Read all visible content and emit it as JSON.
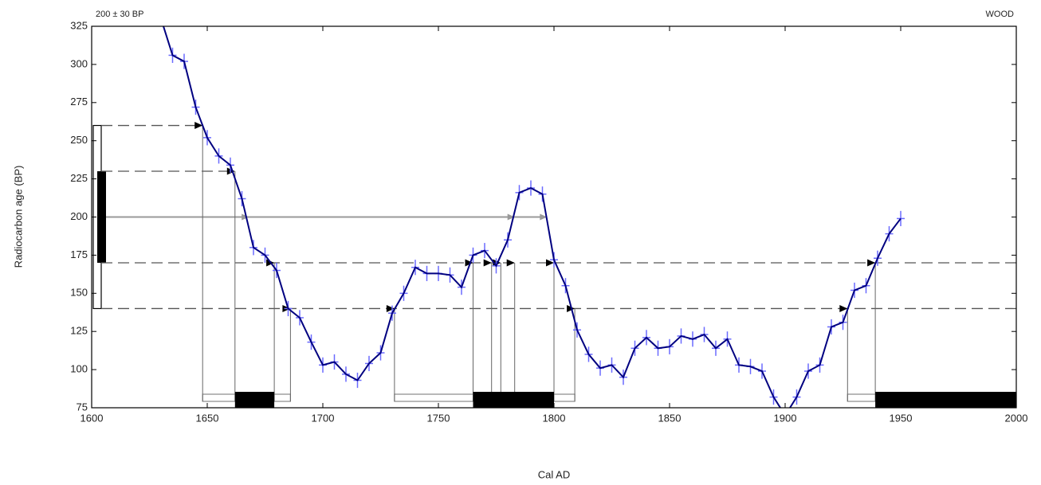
{
  "chart_data": {
    "type": "calibration",
    "sample_label": "200 ± 30 BP",
    "material_label": "WOOD",
    "xlabel": "Cal AD",
    "ylabel": "Radiocarbon age (BP)",
    "xlim": [
      1600,
      2000
    ],
    "xticks": [
      1600,
      1650,
      1700,
      1750,
      1800,
      1850,
      1900,
      1950,
      2000
    ],
    "ylim": [
      75,
      325
    ],
    "yticks": [
      75,
      100,
      125,
      150,
      175,
      200,
      225,
      250,
      275,
      300,
      325
    ],
    "sample": {
      "age": 200,
      "error": 30
    },
    "curve": {
      "color": "#000080",
      "error_color": "#6a6aff",
      "x": [
        1630,
        1635,
        1640,
        1645,
        1650,
        1655,
        1660,
        1665,
        1670,
        1675,
        1680,
        1685,
        1690,
        1695,
        1700,
        1705,
        1710,
        1715,
        1720,
        1725,
        1730,
        1735,
        1740,
        1745,
        1750,
        1755,
        1760,
        1765,
        1770,
        1775,
        1780,
        1785,
        1790,
        1795,
        1800,
        1805,
        1810,
        1815,
        1820,
        1825,
        1830,
        1835,
        1840,
        1845,
        1850,
        1855,
        1860,
        1865,
        1870,
        1875,
        1880,
        1885,
        1890,
        1895,
        1900,
        1905,
        1910,
        1915,
        1920,
        1925,
        1930,
        1935,
        1940,
        1945,
        1950
      ],
      "values": [
        330,
        306,
        302,
        272,
        252,
        240,
        234,
        212,
        180,
        175,
        165,
        140,
        134,
        118,
        103,
        105,
        97,
        93,
        104,
        111,
        137,
        150,
        167,
        163,
        163,
        162,
        154,
        175,
        178,
        168,
        185,
        216,
        219,
        215,
        172,
        155,
        126,
        110,
        101,
        103,
        95,
        114,
        121,
        114,
        115,
        122,
        120,
        123,
        114,
        120,
        103,
        102,
        99,
        82,
        70,
        82,
        99,
        103,
        128,
        131,
        152,
        155,
        173,
        189,
        199
      ],
      "errors": [
        5,
        5,
        5,
        5,
        5,
        5,
        5,
        5,
        5,
        5,
        5,
        5,
        5,
        5,
        5,
        5,
        5,
        5,
        5,
        5,
        5,
        5,
        5,
        5,
        5,
        5,
        5,
        5,
        5,
        5,
        5,
        5,
        5,
        5,
        5,
        5,
        5,
        5,
        5,
        5,
        5,
        5,
        5,
        5,
        5,
        5,
        5,
        5,
        5,
        5,
        5,
        5,
        5,
        5,
        5,
        5,
        5,
        5,
        5,
        5,
        5,
        5,
        5,
        5,
        5
      ]
    },
    "crossings": {
      "x": [
        1648,
        1662,
        1679,
        1686,
        1731,
        1765,
        1773,
        1777,
        1783,
        1800,
        1809,
        1927,
        1939
      ],
      "y": [
        260,
        230,
        170,
        140,
        140,
        170,
        170,
        170,
        170,
        170,
        140,
        140,
        170
      ]
    },
    "mean_crossings": [
      1668,
      1783,
      1797
    ],
    "one_sigma_ranges": [
      [
        1662,
        1679
      ],
      [
        1765,
        1800
      ],
      [
        1939,
        2000
      ]
    ],
    "two_sigma_ranges": [
      [
        1648,
        1686
      ],
      [
        1731,
        1809
      ],
      [
        1927,
        2000
      ]
    ]
  }
}
